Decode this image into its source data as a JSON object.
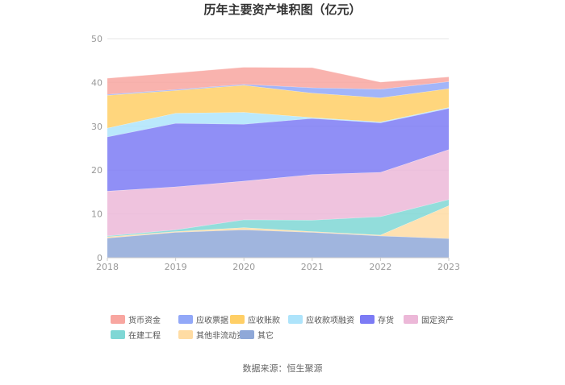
{
  "chart_data": {
    "type": "area",
    "stacked": true,
    "title": "历年主要资产堆积图（亿元）",
    "x": [
      "2018",
      "2019",
      "2020",
      "2021",
      "2022",
      "2023"
    ],
    "ylim": [
      0,
      50
    ],
    "yticks": [
      "0",
      "10",
      "20",
      "30",
      "40",
      "50"
    ],
    "grid": true,
    "legend_position": "bottom",
    "series": [
      {
        "name": "其它",
        "color": "#8fa8d8",
        "values": [
          4.5,
          5.8,
          6.4,
          5.8,
          5.0,
          4.4
        ]
      },
      {
        "name": "其他非流动资产",
        "color": "#ffdca3",
        "values": [
          0.3,
          0.2,
          0.5,
          0.2,
          0.2,
          7.5
        ]
      },
      {
        "name": "在建工程",
        "color": "#7fd7d5",
        "values": [
          0.2,
          0.4,
          1.8,
          2.6,
          4.2,
          1.4
        ]
      },
      {
        "name": "固定资产",
        "color": "#ecb8d8",
        "values": [
          10.2,
          9.8,
          8.8,
          10.4,
          10.1,
          11.4
        ]
      },
      {
        "name": "存货",
        "color": "#7c7bf5",
        "values": [
          12.4,
          14.5,
          13.0,
          12.8,
          11.3,
          9.4
        ]
      },
      {
        "name": "应收款项融资",
        "color": "#aee4fb",
        "values": [
          2.0,
          2.3,
          2.7,
          0.2,
          0.2,
          0.2
        ]
      },
      {
        "name": "应收账款",
        "color": "#ffcf66",
        "values": [
          7.5,
          5.2,
          6.2,
          5.6,
          5.5,
          4.3
        ]
      },
      {
        "name": "应收票据",
        "color": "#92a8f8",
        "values": [
          0.2,
          0.2,
          0.2,
          1.2,
          2.0,
          1.6
        ]
      },
      {
        "name": "货币资金",
        "color": "#f8a6a0",
        "values": [
          3.7,
          3.8,
          3.9,
          4.6,
          1.6,
          1.1
        ]
      }
    ],
    "legend_order": [
      "货币资金",
      "应收票据",
      "应收账款",
      "应收款项融资",
      "存货",
      "固定资产",
      "在建工程",
      "其他非流动资产",
      "其它"
    ]
  },
  "source": "数据来源：恒生聚源"
}
